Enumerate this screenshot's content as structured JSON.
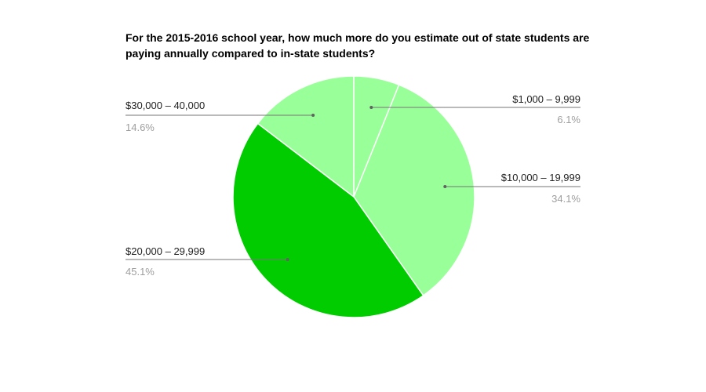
{
  "chart_data": {
    "type": "pie",
    "title": "For the 2015-2016 school year, how much more do you estimate out of state students are paying annually compared to in-state students?",
    "slices": [
      {
        "label": "$1,000 – 9,999",
        "value": 6.1,
        "value_label": "6.1%",
        "color": "#99ff99"
      },
      {
        "label": "$10,000 – 19,999",
        "value": 34.1,
        "value_label": "34.1%",
        "color": "#99ff99"
      },
      {
        "label": "$20,000 – 29,999",
        "value": 45.1,
        "value_label": "45.1%",
        "color": "#00cc00"
      },
      {
        "label": "$30,000 – 40,000",
        "value": 14.6,
        "value_label": "14.6%",
        "color": "#99ff99"
      }
    ],
    "start_angle": "12 o'clock",
    "direction": "clockwise",
    "labels": "outside with leader lines"
  }
}
